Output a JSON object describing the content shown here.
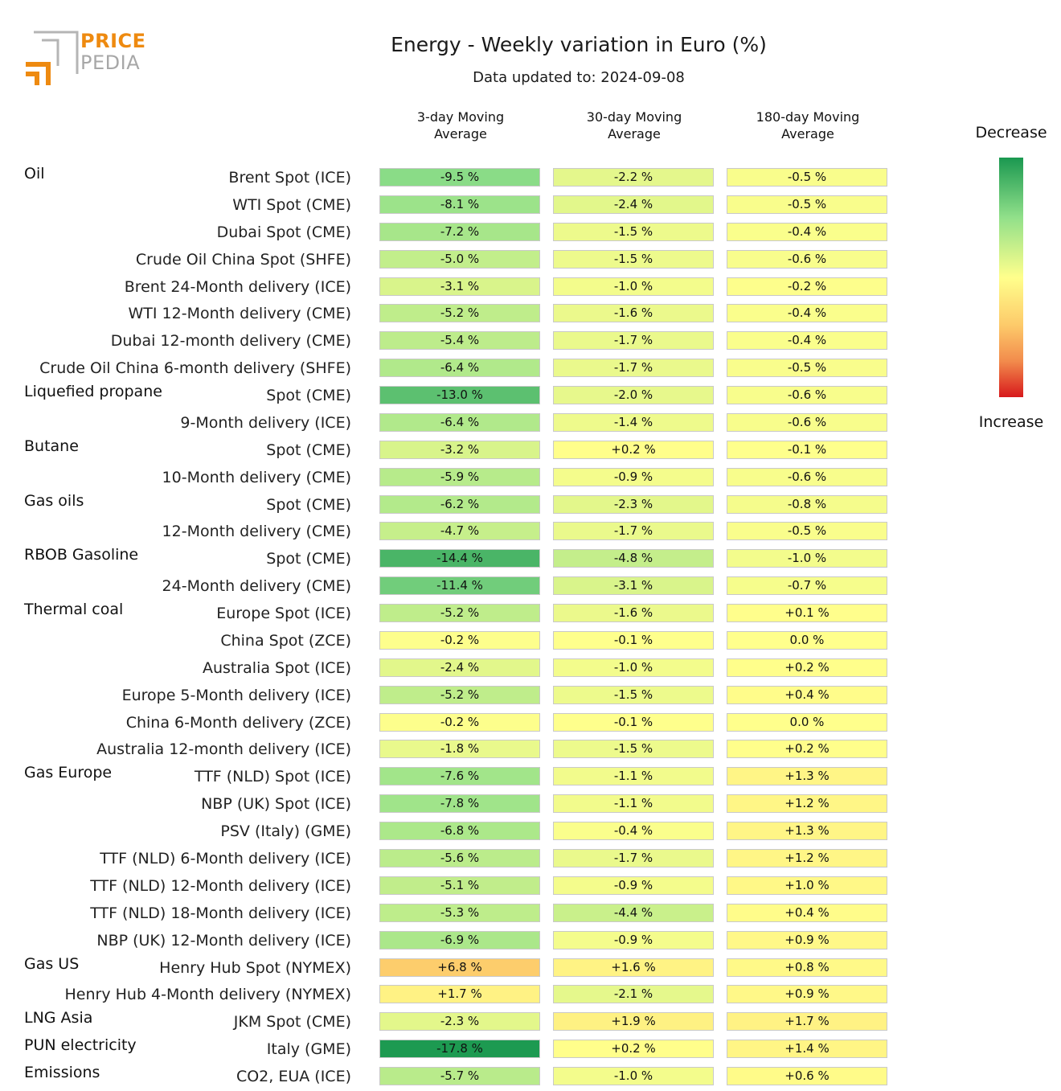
{
  "logo": {
    "line1": "PRICE",
    "line2": "PEDIA"
  },
  "header": {
    "title": "Energy - Weekly variation in Euro (%)",
    "subtitle": "Data updated to: 2024-09-08"
  },
  "legend": {
    "top_label": "Decrease",
    "bottom_label": "Increase",
    "colors": [
      "#1a9850",
      "#91e08a",
      "#ffff8c",
      "#fdca6a",
      "#d7191c"
    ]
  },
  "chart_data": {
    "type": "table",
    "title": "Energy - Weekly variation in Euro (%)",
    "columns": [
      "3-day Moving Average",
      "30-day Moving Average",
      "180-day Moving Average"
    ],
    "column_lines": [
      [
        "3-day Moving",
        "Average"
      ],
      [
        "30-day Moving",
        "Average"
      ],
      [
        "180-day Moving",
        "Average"
      ]
    ],
    "value_range": [
      -18,
      18
    ],
    "rows": [
      {
        "group": "Oil",
        "label": "Brent Spot (ICE)",
        "values": [
          -9.5,
          -2.2,
          -0.5
        ],
        "texts": [
          "-9.5 %",
          "-2.2 %",
          "-0.5 %"
        ]
      },
      {
        "group": "",
        "label": "WTI Spot (CME)",
        "values": [
          -8.1,
          -2.4,
          -0.5
        ],
        "texts": [
          "-8.1 %",
          "-2.4 %",
          "-0.5 %"
        ]
      },
      {
        "group": "",
        "label": "Dubai Spot (CME)",
        "values": [
          -7.2,
          -1.5,
          -0.4
        ],
        "texts": [
          "-7.2 %",
          "-1.5 %",
          "-0.4 %"
        ]
      },
      {
        "group": "",
        "label": "Crude Oil China Spot (SHFE)",
        "values": [
          -5.0,
          -1.5,
          -0.6
        ],
        "texts": [
          "-5.0 %",
          "-1.5 %",
          "-0.6 %"
        ]
      },
      {
        "group": "",
        "label": "Brent 24-Month delivery (ICE)",
        "values": [
          -3.1,
          -1.0,
          -0.2
        ],
        "texts": [
          "-3.1 %",
          "-1.0 %",
          "-0.2 %"
        ]
      },
      {
        "group": "",
        "label": "WTI 12-Month delivery (CME)",
        "values": [
          -5.2,
          -1.6,
          -0.4
        ],
        "texts": [
          "-5.2 %",
          "-1.6 %",
          "-0.4 %"
        ]
      },
      {
        "group": "",
        "label": "Dubai 12-month delivery (CME)",
        "values": [
          -5.4,
          -1.7,
          -0.4
        ],
        "texts": [
          "-5.4 %",
          "-1.7 %",
          "-0.4 %"
        ]
      },
      {
        "group": "",
        "label": "Crude Oil China 6-month delivery (SHFE)",
        "values": [
          -6.4,
          -1.7,
          -0.5
        ],
        "texts": [
          "-6.4 %",
          "-1.7 %",
          "-0.5 %"
        ]
      },
      {
        "group": "Liquefied propane",
        "label": "Spot (CME)",
        "values": [
          -13.0,
          -2.0,
          -0.6
        ],
        "texts": [
          "-13.0 %",
          "-2.0 %",
          "-0.6 %"
        ]
      },
      {
        "group": "",
        "label": "9-Month delivery (ICE)",
        "values": [
          -6.4,
          -1.4,
          -0.6
        ],
        "texts": [
          "-6.4 %",
          "-1.4 %",
          "-0.6 %"
        ]
      },
      {
        "group": "Butane",
        "label": "Spot (CME)",
        "values": [
          -3.2,
          0.2,
          -0.1
        ],
        "texts": [
          "-3.2 %",
          "+0.2 %",
          "-0.1 %"
        ]
      },
      {
        "group": "",
        "label": "10-Month delivery (CME)",
        "values": [
          -5.9,
          -0.9,
          -0.6
        ],
        "texts": [
          "-5.9 %",
          "-0.9 %",
          "-0.6 %"
        ]
      },
      {
        "group": "Gas oils",
        "label": "Spot (CME)",
        "values": [
          -6.2,
          -2.3,
          -0.8
        ],
        "texts": [
          "-6.2 %",
          "-2.3 %",
          "-0.8 %"
        ]
      },
      {
        "group": "",
        "label": "12-Month delivery (CME)",
        "values": [
          -4.7,
          -1.7,
          -0.5
        ],
        "texts": [
          "-4.7 %",
          "-1.7 %",
          "-0.5 %"
        ]
      },
      {
        "group": "RBOB Gasoline",
        "label": "Spot (CME)",
        "values": [
          -14.4,
          -4.8,
          -1.0
        ],
        "texts": [
          "-14.4 %",
          "-4.8 %",
          "-1.0 %"
        ]
      },
      {
        "group": "",
        "label": "24-Month delivery (CME)",
        "values": [
          -11.4,
          -3.1,
          -0.7
        ],
        "texts": [
          "-11.4 %",
          "-3.1 %",
          "-0.7 %"
        ]
      },
      {
        "group": "Thermal coal",
        "label": "Europe Spot (ICE)",
        "values": [
          -5.2,
          -1.6,
          0.1
        ],
        "texts": [
          "-5.2 %",
          "-1.6 %",
          "+0.1 %"
        ]
      },
      {
        "group": "",
        "label": "China Spot (ZCE)",
        "values": [
          -0.2,
          -0.1,
          0.0
        ],
        "texts": [
          "-0.2 %",
          "-0.1 %",
          "0.0 %"
        ]
      },
      {
        "group": "",
        "label": "Australia Spot (ICE)",
        "values": [
          -2.4,
          -1.0,
          0.2
        ],
        "texts": [
          "-2.4 %",
          "-1.0 %",
          "+0.2 %"
        ]
      },
      {
        "group": "",
        "label": "Europe 5-Month delivery (ICE)",
        "values": [
          -5.2,
          -1.5,
          0.4
        ],
        "texts": [
          "-5.2 %",
          "-1.5 %",
          "+0.4 %"
        ]
      },
      {
        "group": "",
        "label": "China 6-Month delivery (ZCE)",
        "values": [
          -0.2,
          -0.1,
          0.0
        ],
        "texts": [
          "-0.2 %",
          "-0.1 %",
          "0.0 %"
        ]
      },
      {
        "group": "",
        "label": "Australia 12-month delivery (ICE)",
        "values": [
          -1.8,
          -1.5,
          0.2
        ],
        "texts": [
          "-1.8 %",
          "-1.5 %",
          "+0.2 %"
        ]
      },
      {
        "group": "Gas Europe",
        "label": "TTF (NLD) Spot (ICE)",
        "values": [
          -7.6,
          -1.1,
          1.3
        ],
        "texts": [
          "-7.6 %",
          "-1.1 %",
          "+1.3 %"
        ]
      },
      {
        "group": "",
        "label": "NBP (UK) Spot (ICE)",
        "values": [
          -7.8,
          -1.1,
          1.2
        ],
        "texts": [
          "-7.8 %",
          "-1.1 %",
          "+1.2 %"
        ]
      },
      {
        "group": "",
        "label": "PSV (Italy) (GME)",
        "values": [
          -6.8,
          -0.4,
          1.3
        ],
        "texts": [
          "-6.8 %",
          "-0.4 %",
          "+1.3 %"
        ]
      },
      {
        "group": "",
        "label": "TTF (NLD) 6-Month delivery (ICE)",
        "values": [
          -5.6,
          -1.7,
          1.2
        ],
        "texts": [
          "-5.6 %",
          "-1.7 %",
          "+1.2 %"
        ]
      },
      {
        "group": "",
        "label": "TTF (NLD) 12-Month delivery (ICE)",
        "values": [
          -5.1,
          -0.9,
          1.0
        ],
        "texts": [
          "-5.1 %",
          "-0.9 %",
          "+1.0 %"
        ]
      },
      {
        "group": "",
        "label": "TTF (NLD) 18-Month delivery (ICE)",
        "values": [
          -5.3,
          -4.4,
          0.4
        ],
        "texts": [
          "-5.3 %",
          "-4.4 %",
          "+0.4 %"
        ]
      },
      {
        "group": "",
        "label": "NBP (UK) 12-Month delivery (ICE)",
        "values": [
          -6.9,
          -0.9,
          0.9
        ],
        "texts": [
          "-6.9 %",
          "-0.9 %",
          "+0.9 %"
        ]
      },
      {
        "group": "Gas US",
        "label": "Henry Hub Spot (NYMEX)",
        "values": [
          6.8,
          1.6,
          0.8
        ],
        "texts": [
          "+6.8 %",
          "+1.6 %",
          "+0.8 %"
        ]
      },
      {
        "group": "",
        "label": "Henry Hub 4-Month delivery (NYMEX)",
        "values": [
          1.7,
          -2.1,
          0.9
        ],
        "texts": [
          "+1.7 %",
          "-2.1 %",
          "+0.9 %"
        ]
      },
      {
        "group": "LNG Asia",
        "label": "JKM Spot (CME)",
        "values": [
          -2.3,
          1.9,
          1.7
        ],
        "texts": [
          "-2.3 %",
          "+1.9 %",
          "+1.7 %"
        ]
      },
      {
        "group": "PUN electricity",
        "label": "Italy (GME)",
        "values": [
          -17.8,
          0.2,
          1.4
        ],
        "texts": [
          "-17.8 %",
          "+0.2 %",
          "+1.4 %"
        ]
      },
      {
        "group": "Emissions",
        "label": "CO2, EUA (ICE)",
        "values": [
          -5.7,
          -1.0,
          0.6
        ],
        "texts": [
          "-5.7 %",
          "-1.0 %",
          "+0.6 %"
        ]
      }
    ]
  }
}
